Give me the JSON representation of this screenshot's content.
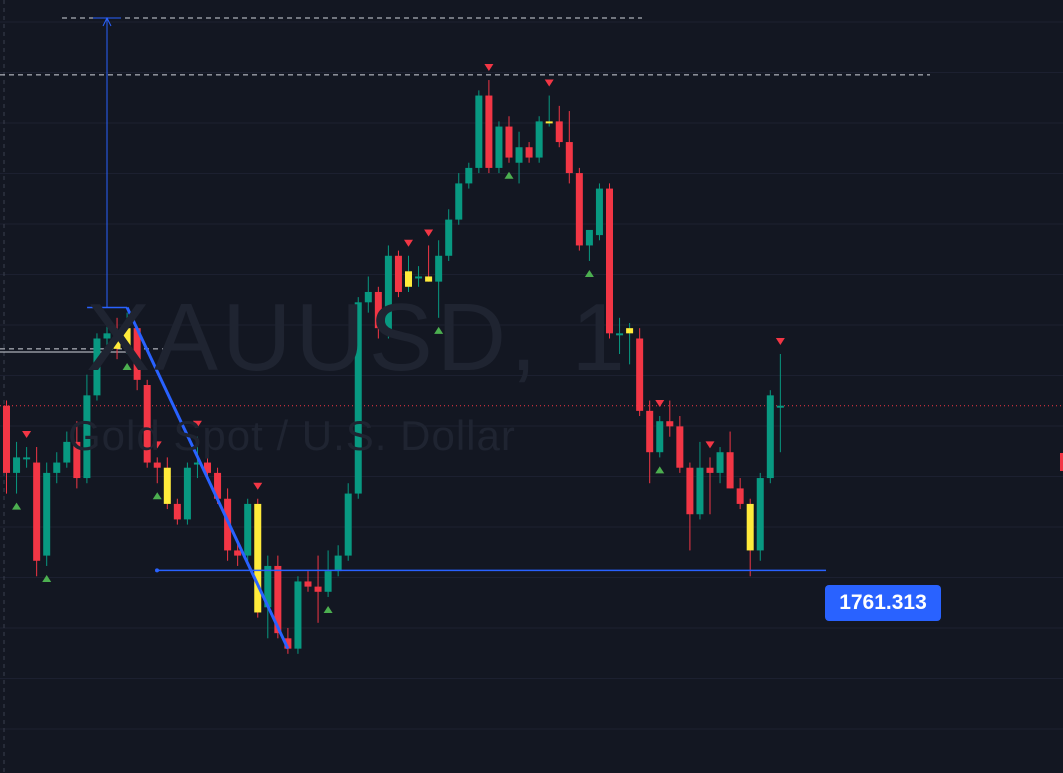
{
  "watermark": {
    "symbol": "XAUUSD, 1",
    "description": "Gold Spot / U.S. Dollar"
  },
  "price_label": {
    "text": "1761.313"
  },
  "colors": {
    "background": "#131722",
    "grid": "#1c2030",
    "up": "#089981",
    "down": "#f23645",
    "highlight": "#ffeb3b",
    "tool_blue": "#2962ff",
    "label_bg": "#2962ff",
    "current_price_line": "#f23645",
    "dashed_level": "#d1d4dc",
    "buy_signal": "#4caf50",
    "sell_signal": "#f23645"
  },
  "chart_data": {
    "type": "candlestick",
    "symbol": "XAUUSD",
    "timeframe": "1",
    "y_range": [
      1759.0,
      1771.0
    ],
    "price_line": 1761.313,
    "current_price": 1764.5,
    "candles": [
      {
        "o": 1764.5,
        "h": 1764.6,
        "l": 1762.8,
        "c": 1763.2
      },
      {
        "o": 1763.2,
        "h": 1763.8,
        "l": 1762.8,
        "c": 1763.5
      },
      {
        "o": 1763.5,
        "h": 1763.7,
        "l": 1763.3,
        "c": 1763.5
      },
      {
        "o": 1763.4,
        "h": 1763.7,
        "l": 1761.2,
        "c": 1761.5
      },
      {
        "o": 1761.6,
        "h": 1763.4,
        "l": 1761.4,
        "c": 1763.2
      },
      {
        "o": 1763.2,
        "h": 1763.6,
        "l": 1763.0,
        "c": 1763.4
      },
      {
        "o": 1763.4,
        "h": 1764.0,
        "l": 1763.3,
        "c": 1763.8
      },
      {
        "o": 1763.8,
        "h": 1764.2,
        "l": 1762.9,
        "c": 1763.1
      },
      {
        "o": 1763.1,
        "h": 1765.1,
        "l": 1763.0,
        "c": 1764.7
      },
      {
        "o": 1764.7,
        "h": 1765.9,
        "l": 1764.6,
        "c": 1765.8
      },
      {
        "o": 1765.8,
        "h": 1766.2,
        "l": 1765.6,
        "c": 1765.9
      },
      {
        "o": 1765.9,
        "h": 1766.2,
        "l": 1765.4,
        "c": 1765.6,
        "hl": true
      },
      {
        "o": 1765.6,
        "h": 1766.3,
        "l": 1765.5,
        "c": 1766.0,
        "hl": true
      },
      {
        "o": 1766.0,
        "h": 1766.0,
        "l": 1764.8,
        "c": 1765.0
      },
      {
        "o": 1764.9,
        "h": 1765.0,
        "l": 1763.3,
        "c": 1763.4
      },
      {
        "o": 1763.4,
        "h": 1763.5,
        "l": 1763.0,
        "c": 1763.3
      },
      {
        "o": 1763.3,
        "h": 1763.5,
        "l": 1762.5,
        "c": 1762.6,
        "hl": true
      },
      {
        "o": 1762.6,
        "h": 1762.7,
        "l": 1762.2,
        "c": 1762.3
      },
      {
        "o": 1762.3,
        "h": 1763.4,
        "l": 1762.2,
        "c": 1763.3
      },
      {
        "o": 1763.4,
        "h": 1763.9,
        "l": 1763.1,
        "c": 1763.4
      },
      {
        "o": 1763.4,
        "h": 1763.6,
        "l": 1763.1,
        "c": 1763.2
      },
      {
        "o": 1763.2,
        "h": 1763.3,
        "l": 1762.6,
        "c": 1762.7
      },
      {
        "o": 1762.7,
        "h": 1762.9,
        "l": 1761.5,
        "c": 1761.7
      },
      {
        "o": 1761.7,
        "h": 1761.9,
        "l": 1761.4,
        "c": 1761.6
      },
      {
        "o": 1761.6,
        "h": 1762.7,
        "l": 1761.5,
        "c": 1762.6
      },
      {
        "o": 1762.6,
        "h": 1762.7,
        "l": 1760.4,
        "c": 1760.5,
        "hl": true
      },
      {
        "o": 1760.6,
        "h": 1761.6,
        "l": 1760.0,
        "c": 1761.4
      },
      {
        "o": 1761.4,
        "h": 1761.6,
        "l": 1760.0,
        "c": 1760.1
      },
      {
        "o": 1760.0,
        "h": 1760.2,
        "l": 1759.7,
        "c": 1759.8
      },
      {
        "o": 1759.8,
        "h": 1761.2,
        "l": 1759.7,
        "c": 1761.1
      },
      {
        "o": 1761.1,
        "h": 1761.3,
        "l": 1760.9,
        "c": 1761.0
      },
      {
        "o": 1761.0,
        "h": 1761.6,
        "l": 1760.3,
        "c": 1760.9
      },
      {
        "o": 1760.9,
        "h": 1761.7,
        "l": 1760.8,
        "c": 1761.3
      },
      {
        "o": 1761.3,
        "h": 1761.8,
        "l": 1761.2,
        "c": 1761.6
      },
      {
        "o": 1761.6,
        "h": 1763.0,
        "l": 1761.5,
        "c": 1762.8
      },
      {
        "o": 1762.8,
        "h": 1766.6,
        "l": 1762.7,
        "c": 1766.5
      },
      {
        "o": 1766.5,
        "h": 1767.0,
        "l": 1766.3,
        "c": 1766.7
      },
      {
        "o": 1766.7,
        "h": 1766.8,
        "l": 1765.8,
        "c": 1766.0
      },
      {
        "o": 1765.9,
        "h": 1767.6,
        "l": 1765.8,
        "c": 1767.4
      },
      {
        "o": 1767.4,
        "h": 1767.5,
        "l": 1766.6,
        "c": 1766.7
      },
      {
        "o": 1766.8,
        "h": 1767.4,
        "l": 1766.7,
        "c": 1767.1,
        "hl": true
      },
      {
        "o": 1767.0,
        "h": 1767.2,
        "l": 1766.8,
        "c": 1767.0
      },
      {
        "o": 1767.0,
        "h": 1767.6,
        "l": 1766.9,
        "c": 1766.9,
        "hl": true
      },
      {
        "o": 1766.9,
        "h": 1767.7,
        "l": 1766.2,
        "c": 1767.4
      },
      {
        "o": 1767.4,
        "h": 1768.3,
        "l": 1767.3,
        "c": 1768.1
      },
      {
        "o": 1768.1,
        "h": 1769.0,
        "l": 1768.0,
        "c": 1768.8
      },
      {
        "o": 1768.8,
        "h": 1769.2,
        "l": 1768.7,
        "c": 1769.1
      },
      {
        "o": 1769.1,
        "h": 1770.6,
        "l": 1769.0,
        "c": 1770.5
      },
      {
        "o": 1770.5,
        "h": 1770.8,
        "l": 1769.0,
        "c": 1769.1
      },
      {
        "o": 1769.1,
        "h": 1770.0,
        "l": 1769.0,
        "c": 1769.9
      },
      {
        "o": 1769.9,
        "h": 1770.1,
        "l": 1769.2,
        "c": 1769.3
      },
      {
        "o": 1769.2,
        "h": 1769.8,
        "l": 1768.8,
        "c": 1769.5
      },
      {
        "o": 1769.5,
        "h": 1769.6,
        "l": 1769.2,
        "c": 1769.3
      },
      {
        "o": 1769.3,
        "h": 1770.1,
        "l": 1769.2,
        "c": 1770.0
      },
      {
        "o": 1770.0,
        "h": 1770.5,
        "l": 1769.9,
        "c": 1770.0,
        "hl": true
      },
      {
        "o": 1770.0,
        "h": 1770.3,
        "l": 1769.5,
        "c": 1769.6
      },
      {
        "o": 1769.6,
        "h": 1770.2,
        "l": 1768.8,
        "c": 1769.0
      },
      {
        "o": 1769.0,
        "h": 1769.1,
        "l": 1767.5,
        "c": 1767.6
      },
      {
        "o": 1767.6,
        "h": 1767.8,
        "l": 1767.3,
        "c": 1767.9
      },
      {
        "o": 1767.8,
        "h": 1768.8,
        "l": 1767.7,
        "c": 1768.7
      },
      {
        "o": 1768.7,
        "h": 1768.8,
        "l": 1765.8,
        "c": 1765.9
      },
      {
        "o": 1765.9,
        "h": 1766.2,
        "l": 1765.5,
        "c": 1765.9
      },
      {
        "o": 1765.9,
        "h": 1766.1,
        "l": 1765.3,
        "c": 1766.0,
        "hl": true
      },
      {
        "o": 1765.8,
        "h": 1766.0,
        "l": 1764.3,
        "c": 1764.4
      },
      {
        "o": 1764.4,
        "h": 1764.6,
        "l": 1763.0,
        "c": 1763.6
      },
      {
        "o": 1763.6,
        "h": 1764.3,
        "l": 1763.5,
        "c": 1764.2
      },
      {
        "o": 1764.2,
        "h": 1764.6,
        "l": 1763.9,
        "c": 1764.1
      },
      {
        "o": 1764.1,
        "h": 1764.3,
        "l": 1763.2,
        "c": 1763.3
      },
      {
        "o": 1763.3,
        "h": 1763.4,
        "l": 1761.7,
        "c": 1762.4
      },
      {
        "o": 1762.4,
        "h": 1763.8,
        "l": 1762.3,
        "c": 1763.3
      },
      {
        "o": 1763.3,
        "h": 1763.5,
        "l": 1762.4,
        "c": 1763.2
      },
      {
        "o": 1763.2,
        "h": 1763.7,
        "l": 1763.0,
        "c": 1763.6
      },
      {
        "o": 1763.6,
        "h": 1764.0,
        "l": 1762.9,
        "c": 1762.9
      },
      {
        "o": 1762.9,
        "h": 1763.1,
        "l": 1762.5,
        "c": 1762.6
      },
      {
        "o": 1762.6,
        "h": 1762.7,
        "l": 1761.2,
        "c": 1761.7,
        "hl": true
      },
      {
        "o": 1761.7,
        "h": 1763.2,
        "l": 1761.5,
        "c": 1763.1
      },
      {
        "o": 1763.1,
        "h": 1764.8,
        "l": 1763.0,
        "c": 1764.7
      },
      {
        "o": 1764.5,
        "h": 1765.5,
        "l": 1763.6,
        "c": 1764.5
      }
    ],
    "sell_signals_at": [
      2,
      15,
      19,
      25,
      40,
      42,
      48,
      54,
      65,
      70,
      77
    ],
    "buy_signals_at": [
      1,
      4,
      12,
      15,
      32,
      43,
      50,
      58,
      65
    ],
    "drawings": [
      {
        "type": "trend_line",
        "from_index": 12,
        "from_price": 1766.4,
        "to_index": 28,
        "to_price": 1759.8
      },
      {
        "type": "horizontal_ray",
        "from_index": 15,
        "price": 1761.313
      },
      {
        "type": "vertical_measure",
        "index": 9,
        "from_price": 1766.4,
        "to_price": 1772.0
      }
    ],
    "dashed_levels": [
      1772.0,
      1770.9,
      1765.6
    ]
  }
}
